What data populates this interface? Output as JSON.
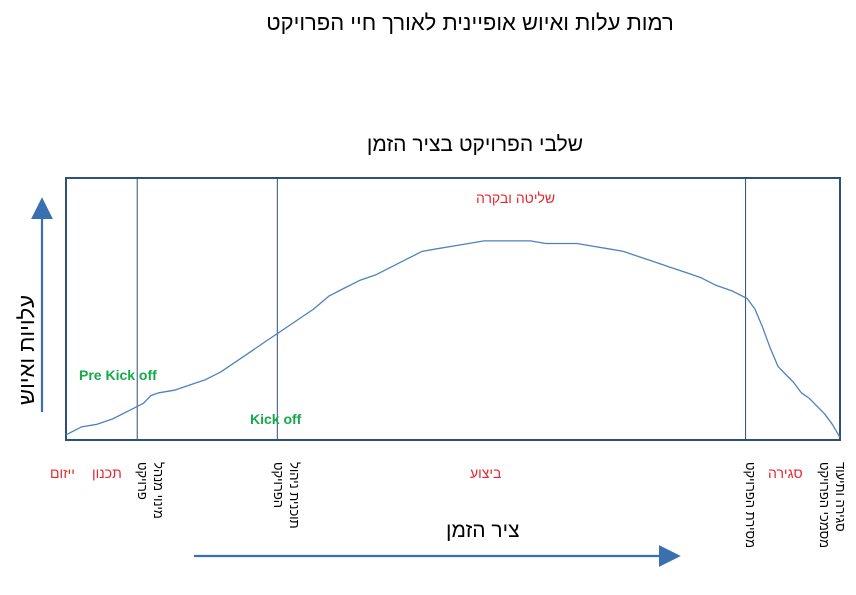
{
  "title": "רמות עלות ואיוש אופיינית לאורך חיי הפרויקט",
  "subtitle": "שלבי הפרויקט בציר הזמן",
  "y_axis_label": "עלויות ואיוש",
  "x_axis_label": "ציר הזמן",
  "inner_labels": {
    "control": "שליטה ובקרה",
    "pre_kickoff": "Pre Kick off",
    "kickoff": "Kick off"
  },
  "phases": {
    "initiation": "ייזום",
    "planning": "תכנון",
    "execution": "ביצוע",
    "closing": "סגירה"
  },
  "milestones": {
    "manager_line1": "מינוי מנהל",
    "manager_line2": "פרויקט",
    "plan_line1": "תוכנית ניהול",
    "plan_line2": "הפרויקט",
    "handover": "מסירת הפרויקט",
    "docs_line1": "סגירה ותיעוד",
    "docs_line2": "מסמכי הפרויקט"
  },
  "colors": {
    "frame": "#2e4f7a",
    "curve": "#4f81bd",
    "arrow": "#3a6fb0",
    "phase_text": "#e8262e",
    "kickoff_text": "#16a94a"
  },
  "chart_data": {
    "type": "line",
    "title": "שלבי הפרויקט בציר הזמן",
    "xlabel": "ציר הזמן",
    "ylabel": "עלויות ואיוש",
    "xlim": [
      0,
      100
    ],
    "ylim": [
      0,
      100
    ],
    "grid": false,
    "series": [
      {
        "x": [
          0,
          2,
          4,
          6,
          8,
          10,
          11,
          12,
          14,
          16,
          18,
          20,
          22,
          24,
          26,
          28,
          30,
          32,
          34,
          36,
          38,
          40,
          42,
          44,
          46,
          48,
          50,
          52,
          54,
          56,
          58,
          60,
          62,
          64,
          66,
          68,
          70,
          72,
          74,
          76,
          78,
          80,
          82,
          84,
          86,
          88,
          89,
          90,
          91,
          92,
          93,
          94,
          95,
          96,
          97,
          98,
          99,
          100
        ],
        "y": [
          2,
          5,
          6,
          8,
          11,
          14,
          17,
          18,
          19,
          21,
          23,
          26,
          30,
          34,
          38,
          42,
          46,
          50,
          55,
          58,
          61,
          63,
          66,
          69,
          72,
          73,
          74,
          75,
          76,
          76,
          76,
          76,
          75,
          75,
          75,
          74,
          73,
          72,
          70,
          68,
          66,
          64,
          62,
          59,
          57,
          54,
          50,
          43,
          35,
          28,
          25,
          22,
          18,
          16,
          13,
          10,
          6,
          1
        ]
      }
    ],
    "vertical_markers_x": [
      9.2,
      27.3,
      87.8
    ]
  }
}
